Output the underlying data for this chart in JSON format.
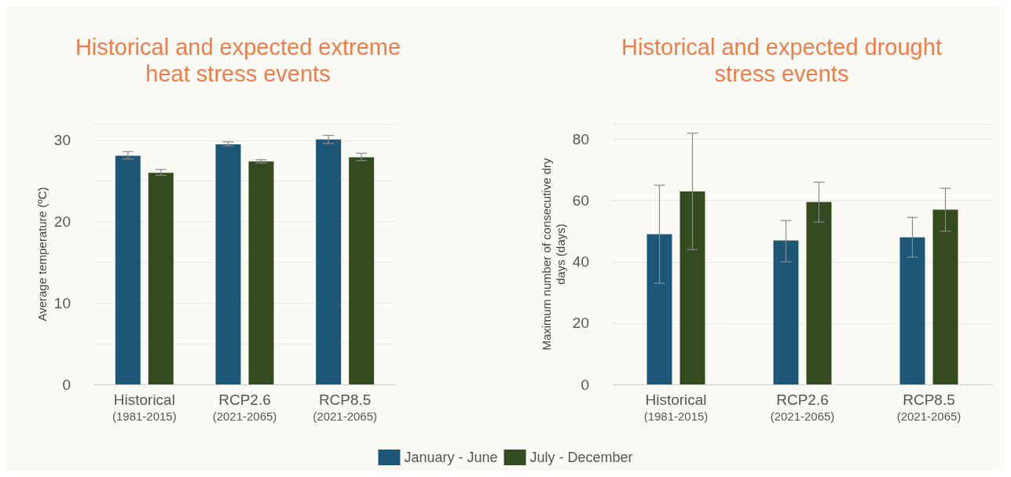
{
  "chart_data": [
    {
      "type": "bar",
      "title": "Historical and expected extreme\nheat stress events",
      "ylabel": "Average temperature (ºC)",
      "categories": [
        "Historical\n(1981-2015)",
        "RCP2.6\n(2021-2065)",
        "RCP8.5\n(2021-2065)"
      ],
      "series": [
        {
          "name": "January - June",
          "color": "#1d5777",
          "values": [
            28.1,
            29.5,
            30.1
          ],
          "errors": [
            [
              27.7,
              28.6
            ],
            [
              29.3,
              29.8
            ],
            [
              29.6,
              30.6
            ]
          ]
        },
        {
          "name": "July - December",
          "color": "#344b1f",
          "values": [
            26.0,
            27.4,
            27.9
          ],
          "errors": [
            [
              25.7,
              26.4
            ],
            [
              27.2,
              27.6
            ],
            [
              27.5,
              28.4
            ]
          ]
        }
      ],
      "ylim": [
        0,
        32
      ],
      "yticks": [
        0,
        10,
        20,
        30
      ],
      "grid": "y",
      "legend": "bottom"
    },
    {
      "type": "bar",
      "title": "Historical and expected drought\nstress events",
      "ylabel": "Maximum number of consecutive dry\ndays (days)",
      "categories": [
        "Historical\n(1981-2015)",
        "RCP2.6\n(2021-2065)",
        "RCP8.5\n(2021-2065)"
      ],
      "series": [
        {
          "name": "January - June",
          "color": "#1d5777",
          "values": [
            49,
            47,
            48
          ],
          "errors": [
            [
              33,
              65
            ],
            [
              40,
              53.5
            ],
            [
              41.5,
              54.5
            ]
          ]
        },
        {
          "name": "July - December",
          "color": "#344b1f",
          "values": [
            63,
            59.5,
            57
          ],
          "errors": [
            [
              44,
              82
            ],
            [
              53,
              66
            ],
            [
              50,
              64
            ]
          ]
        }
      ],
      "ylim": [
        0,
        85
      ],
      "yticks": [
        0,
        20,
        40,
        60,
        80
      ],
      "grid": "y",
      "legend": "bottom"
    }
  ]
}
